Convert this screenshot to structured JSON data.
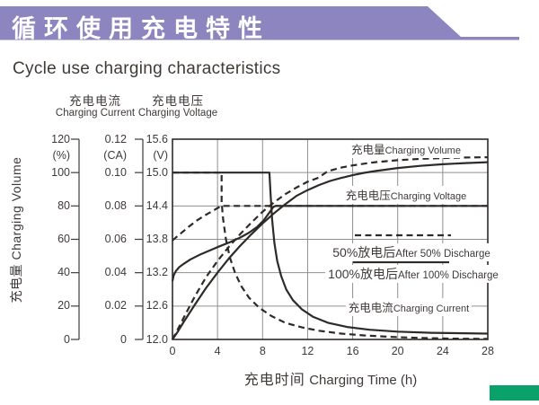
{
  "header": {
    "title_zh": "循环使用充电特性",
    "title_en": "Cycle use charging characteristics"
  },
  "colors": {
    "banner": "#8d85c0",
    "accent_green": "#0ba16b",
    "curve": "#2e2a28",
    "grid": "#8f8f8f",
    "text": "#3f3a38"
  },
  "chart_data": {
    "type": "line",
    "title": "Cycle use charging characteristics",
    "grid": true,
    "x_axis": {
      "label_zh": "充电时间",
      "label_en": "Charging Time (h)",
      "min": 0,
      "max": 28,
      "ticks": [
        "0",
        "4",
        "8",
        "12",
        "16",
        "20",
        "24",
        "28"
      ]
    },
    "y_axes": [
      {
        "id": "percent",
        "label_zh": "充电量",
        "label_en": "Charging Volume",
        "unit": "(%)",
        "min": 0,
        "max": 120,
        "ticks": [
          "120",
          "100",
          "80",
          "60",
          "40",
          "20",
          "0"
        ]
      },
      {
        "id": "ca",
        "label_zh": "充电电流",
        "label_en": "Charging Current",
        "unit": "(CA)",
        "min": 0,
        "max": 0.12,
        "ticks": [
          "0.12",
          "0.10",
          "0.08",
          "0.06",
          "0.04",
          "0.02",
          "0"
        ]
      },
      {
        "id": "volt",
        "label_zh": "充电电压",
        "label_en": "Charging Voltage",
        "unit": "(V)",
        "min": 12,
        "max": 15.6,
        "ticks": [
          "15.6",
          "15.0",
          "14.4",
          "13.8",
          "13.2",
          "12.6",
          "12.0"
        ]
      }
    ],
    "legend": [
      {
        "style": "dashed",
        "label_zh": "50%放电后",
        "label_en": "After 50% Discharge"
      },
      {
        "style": "solid",
        "label_zh": "100%放电后",
        "label_en": "After 100% Discharge"
      }
    ],
    "annotations": [
      {
        "id": "volume",
        "label_zh": "充电量",
        "label_en": "Charging Volume"
      },
      {
        "id": "voltage",
        "label_zh": "充电电压",
        "label_en": "Charging Voltage"
      },
      {
        "id": "current",
        "label_zh": "充电电流",
        "label_en": "Charging Current"
      }
    ],
    "series": [
      {
        "name": "charging_volume_after_100pct_discharge",
        "axis": "percent",
        "style": "solid",
        "points": [
          [
            0,
            0
          ],
          [
            0.5,
            5
          ],
          [
            1,
            10.5
          ],
          [
            2,
            21
          ],
          [
            3,
            31
          ],
          [
            4,
            40
          ],
          [
            5,
            48.5
          ],
          [
            6,
            56
          ],
          [
            7,
            63
          ],
          [
            8,
            69.5
          ],
          [
            9,
            75.5
          ],
          [
            10,
            81
          ],
          [
            11,
            86
          ],
          [
            12,
            89.5
          ],
          [
            13,
            92.5
          ],
          [
            14,
            95
          ],
          [
            15,
            96.8
          ],
          [
            16,
            98.4
          ],
          [
            17,
            99.8
          ],
          [
            18,
            100.9
          ],
          [
            20,
            102.7
          ],
          [
            22,
            104
          ],
          [
            24,
            105
          ],
          [
            26,
            105.7
          ],
          [
            28,
            106.2
          ]
        ]
      },
      {
        "name": "charging_volume_after_50pct_discharge",
        "axis": "percent",
        "style": "dashed",
        "points": [
          [
            0,
            0
          ],
          [
            0.5,
            6.5
          ],
          [
            1,
            13
          ],
          [
            2,
            26
          ],
          [
            3,
            37.5
          ],
          [
            4,
            47
          ],
          [
            5,
            55.5
          ],
          [
            6,
            63
          ],
          [
            7,
            70
          ],
          [
            8,
            76.5
          ],
          [
            9,
            82
          ],
          [
            10,
            87
          ],
          [
            11,
            91
          ],
          [
            12,
            94.5
          ],
          [
            13,
            97
          ],
          [
            13.6,
            100
          ],
          [
            14,
            101.2
          ],
          [
            15,
            103
          ],
          [
            16,
            104.3
          ],
          [
            17,
            105.3
          ],
          [
            18,
            106.2
          ],
          [
            20,
            107.4
          ],
          [
            22,
            108.2
          ],
          [
            24,
            108.7
          ],
          [
            26,
            109
          ],
          [
            28,
            109.2
          ]
        ]
      },
      {
        "name": "charging_voltage_after_100pct_discharge",
        "axis": "volt",
        "style": "solid",
        "points": [
          [
            0,
            13.05
          ],
          [
            0.1,
            13.15
          ],
          [
            0.3,
            13.23
          ],
          [
            0.6,
            13.3
          ],
          [
            1,
            13.36
          ],
          [
            1.6,
            13.44
          ],
          [
            2.4,
            13.52
          ],
          [
            3.2,
            13.59
          ],
          [
            4,
            13.66
          ],
          [
            5,
            13.74
          ],
          [
            6,
            13.83
          ],
          [
            6.8,
            13.92
          ],
          [
            7.5,
            14.02
          ],
          [
            8.1,
            14.14
          ],
          [
            8.6,
            14.28
          ],
          [
            8.95,
            14.38
          ],
          [
            9.15,
            14.4
          ],
          [
            28,
            14.4
          ]
        ]
      },
      {
        "name": "charging_voltage_after_50pct_discharge",
        "axis": "volt",
        "style": "dashed",
        "points": [
          [
            0,
            13.78
          ],
          [
            0.7,
            13.9
          ],
          [
            1.4,
            14.02
          ],
          [
            2.1,
            14.13
          ],
          [
            2.8,
            14.22
          ],
          [
            3.4,
            14.29
          ],
          [
            3.9,
            14.35
          ],
          [
            4.36,
            14.4
          ],
          [
            28,
            14.4
          ]
        ]
      },
      {
        "name": "charging_current_after_100pct_discharge",
        "axis": "ca",
        "style": "solid",
        "points": [
          [
            0,
            0.1
          ],
          [
            8.61,
            0.1
          ],
          [
            8.7,
            0.088
          ],
          [
            8.85,
            0.072
          ],
          [
            9.05,
            0.058
          ],
          [
            9.3,
            0.047
          ],
          [
            9.65,
            0.038
          ],
          [
            10.1,
            0.03
          ],
          [
            10.7,
            0.0235
          ],
          [
            11.5,
            0.018
          ],
          [
            12.5,
            0.0135
          ],
          [
            13.8,
            0.01
          ],
          [
            15.5,
            0.0075
          ],
          [
            17.5,
            0.0058
          ],
          [
            20,
            0.0047
          ],
          [
            23,
            0.004
          ],
          [
            28,
            0.0035
          ]
        ]
      },
      {
        "name": "charging_current_after_50pct_discharge",
        "axis": "ca",
        "style": "dashed",
        "points": [
          [
            0,
            0.1
          ],
          [
            4.36,
            0.1
          ],
          [
            4.36,
            0.082
          ],
          [
            4.5,
            0.072
          ],
          [
            4.75,
            0.06
          ],
          [
            5.1,
            0.049
          ],
          [
            5.55,
            0.04
          ],
          [
            6.1,
            0.032
          ],
          [
            6.8,
            0.025
          ],
          [
            7.7,
            0.019
          ],
          [
            8.8,
            0.014
          ],
          [
            10,
            0.01
          ],
          [
            11.5,
            0.0072
          ],
          [
            13,
            0.0052
          ],
          [
            15,
            0.0035
          ],
          [
            17,
            0.0024
          ],
          [
            19.5,
            0.0015
          ],
          [
            22,
            0.0009
          ],
          [
            25,
            0.0005
          ],
          [
            28,
            0.0003
          ]
        ]
      }
    ]
  }
}
